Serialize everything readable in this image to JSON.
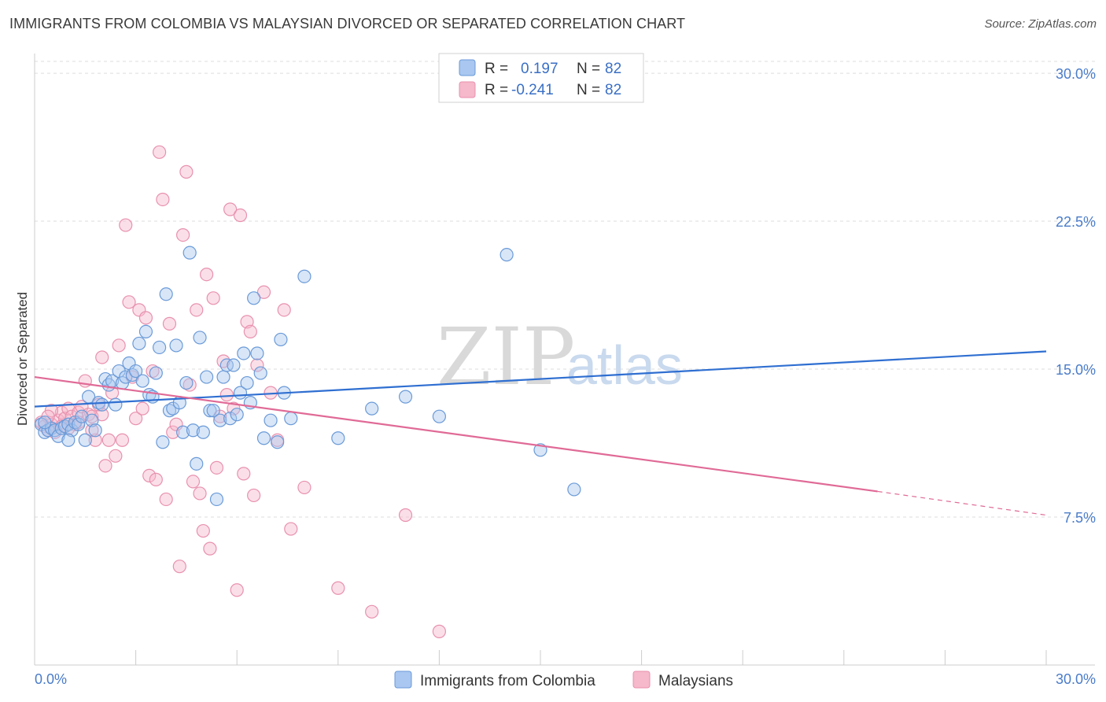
{
  "header": {
    "title": "IMMIGRANTS FROM COLOMBIA VS MALAYSIAN DIVORCED OR SEPARATED CORRELATION CHART",
    "source": "Source: ZipAtlas.com"
  },
  "watermark": {
    "zip": "ZIP",
    "atlas": "atlas"
  },
  "colors": {
    "blue_fill": "#a9c7f0",
    "blue_stroke": "#6a9ad8",
    "blue_line": "#2f6fd1",
    "pink_fill": "#f6b8cb",
    "pink_stroke": "#e891ae",
    "pink_line": "#e06a96",
    "grid": "#dddddd",
    "tick_text": "#4a7cc9"
  },
  "legend": {
    "r_label": "R =",
    "n_label": "N =",
    "series": [
      {
        "r": "0.197",
        "n": "82"
      },
      {
        "r": "-0.241",
        "n": "82"
      }
    ]
  },
  "bottom_legend": [
    "Immigrants from Colombia",
    "Malaysians"
  ],
  "chart_data": {
    "type": "scatter",
    "title": "IMMIGRANTS FROM COLOMBIA VS MALAYSIAN DIVORCED OR SEPARATED CORRELATION CHART",
    "xlabel": "",
    "ylabel": "Divorced or Separated",
    "xlim": [
      0,
      30
    ],
    "ylim": [
      0,
      31
    ],
    "x_tick_labels": [
      "0.0%",
      "30.0%"
    ],
    "y_ticks": [
      7.5,
      15.0,
      22.5,
      30.0
    ],
    "y_tick_labels": [
      "7.5%",
      "15.0%",
      "22.5%",
      "30.0%"
    ],
    "grid": true,
    "legend_position": "top-center",
    "series": [
      {
        "name": "Immigrants from Colombia",
        "r": 0.197,
        "n": 82,
        "trend": {
          "x": [
            0,
            30
          ],
          "y": [
            13.1,
            15.9
          ]
        },
        "points": [
          [
            0.2,
            12.2
          ],
          [
            0.3,
            11.8
          ],
          [
            0.4,
            11.9
          ],
          [
            0.5,
            12.0
          ],
          [
            0.6,
            11.9
          ],
          [
            0.7,
            11.6
          ],
          [
            0.8,
            12.0
          ],
          [
            0.9,
            12.1
          ],
          [
            1.0,
            12.2
          ],
          [
            1.1,
            11.9
          ],
          [
            1.2,
            12.3
          ],
          [
            1.3,
            12.2
          ],
          [
            1.4,
            12.6
          ],
          [
            1.5,
            11.4
          ],
          [
            1.6,
            13.6
          ],
          [
            1.7,
            12.4
          ],
          [
            1.8,
            11.9
          ],
          [
            1.9,
            13.3
          ],
          [
            2.0,
            13.2
          ],
          [
            2.1,
            14.5
          ],
          [
            2.2,
            14.2
          ],
          [
            2.3,
            14.4
          ],
          [
            2.4,
            13.2
          ],
          [
            2.5,
            14.9
          ],
          [
            2.6,
            14.3
          ],
          [
            2.7,
            14.6
          ],
          [
            2.8,
            15.3
          ],
          [
            2.9,
            14.7
          ],
          [
            3.0,
            14.9
          ],
          [
            3.1,
            16.3
          ],
          [
            3.2,
            14.4
          ],
          [
            3.3,
            16.9
          ],
          [
            3.4,
            13.7
          ],
          [
            3.5,
            13.6
          ],
          [
            3.6,
            14.8
          ],
          [
            3.7,
            16.1
          ],
          [
            3.8,
            11.3
          ],
          [
            3.9,
            18.8
          ],
          [
            4.0,
            12.9
          ],
          [
            4.1,
            13.0
          ],
          [
            4.2,
            16.2
          ],
          [
            4.3,
            13.3
          ],
          [
            4.4,
            11.8
          ],
          [
            4.5,
            14.3
          ],
          [
            4.6,
            20.9
          ],
          [
            4.7,
            11.9
          ],
          [
            4.8,
            10.2
          ],
          [
            4.9,
            16.6
          ],
          [
            5.0,
            11.8
          ],
          [
            5.1,
            14.6
          ],
          [
            5.2,
            12.9
          ],
          [
            5.3,
            12.9
          ],
          [
            5.4,
            8.4
          ],
          [
            5.5,
            12.4
          ],
          [
            5.6,
            14.6
          ],
          [
            5.7,
            15.2
          ],
          [
            5.8,
            12.5
          ],
          [
            5.9,
            15.2
          ],
          [
            6.0,
            12.7
          ],
          [
            6.1,
            13.8
          ],
          [
            6.2,
            15.8
          ],
          [
            6.3,
            14.3
          ],
          [
            6.4,
            13.3
          ],
          [
            6.5,
            18.6
          ],
          [
            6.6,
            15.8
          ],
          [
            6.7,
            14.8
          ],
          [
            6.8,
            11.5
          ],
          [
            7.0,
            12.4
          ],
          [
            7.2,
            11.3
          ],
          [
            7.3,
            16.5
          ],
          [
            7.4,
            13.8
          ],
          [
            7.6,
            12.5
          ],
          [
            8.0,
            19.7
          ],
          [
            9.0,
            11.5
          ],
          [
            10.0,
            13.0
          ],
          [
            11.0,
            13.6
          ],
          [
            12.0,
            12.6
          ],
          [
            14.0,
            20.8
          ],
          [
            15.0,
            10.9
          ],
          [
            16.0,
            8.9
          ],
          [
            0.3,
            12.3
          ],
          [
            1.0,
            11.4
          ]
        ]
      },
      {
        "name": "Malaysians",
        "r": -0.241,
        "n": 82,
        "trend": {
          "x": [
            0,
            25
          ],
          "y": [
            14.6,
            8.8
          ]
        },
        "trend_dashed": {
          "x": [
            25,
            30
          ],
          "y": [
            8.8,
            7.6
          ]
        },
        "points": [
          [
            0.2,
            12.3
          ],
          [
            0.3,
            12.1
          ],
          [
            0.4,
            11.9
          ],
          [
            0.5,
            12.2
          ],
          [
            0.6,
            11.8
          ],
          [
            0.7,
            12.4
          ],
          [
            0.8,
            12.8
          ],
          [
            0.9,
            12.5
          ],
          [
            1.0,
            13.0
          ],
          [
            1.1,
            12.6
          ],
          [
            1.2,
            12.2
          ],
          [
            1.3,
            12.8
          ],
          [
            1.4,
            13.1
          ],
          [
            1.5,
            14.4
          ],
          [
            1.6,
            12.7
          ],
          [
            1.7,
            12.6
          ],
          [
            1.8,
            11.4
          ],
          [
            1.9,
            13.2
          ],
          [
            2.0,
            15.6
          ],
          [
            2.1,
            10.1
          ],
          [
            2.2,
            11.4
          ],
          [
            2.3,
            13.8
          ],
          [
            2.4,
            10.6
          ],
          [
            2.5,
            16.2
          ],
          [
            2.6,
            11.4
          ],
          [
            2.7,
            22.3
          ],
          [
            2.8,
            18.4
          ],
          [
            2.9,
            14.6
          ],
          [
            3.0,
            12.5
          ],
          [
            3.1,
            18.0
          ],
          [
            3.2,
            13.0
          ],
          [
            3.3,
            17.6
          ],
          [
            3.4,
            9.6
          ],
          [
            3.5,
            14.9
          ],
          [
            3.6,
            9.4
          ],
          [
            3.7,
            26.0
          ],
          [
            3.8,
            23.6
          ],
          [
            3.9,
            8.4
          ],
          [
            4.0,
            17.3
          ],
          [
            4.1,
            11.8
          ],
          [
            4.2,
            12.2
          ],
          [
            4.3,
            5.0
          ],
          [
            4.4,
            21.8
          ],
          [
            4.5,
            25.0
          ],
          [
            4.6,
            14.2
          ],
          [
            4.7,
            9.3
          ],
          [
            4.8,
            18.0
          ],
          [
            4.9,
            8.7
          ],
          [
            5.0,
            6.8
          ],
          [
            5.1,
            19.8
          ],
          [
            5.2,
            5.9
          ],
          [
            5.3,
            18.6
          ],
          [
            5.4,
            10.0
          ],
          [
            5.5,
            12.6
          ],
          [
            5.6,
            15.4
          ],
          [
            5.7,
            13.7
          ],
          [
            5.8,
            23.1
          ],
          [
            5.9,
            13.0
          ],
          [
            6.0,
            3.8
          ],
          [
            6.1,
            22.8
          ],
          [
            6.2,
            9.7
          ],
          [
            6.3,
            17.4
          ],
          [
            6.4,
            16.9
          ],
          [
            6.5,
            8.6
          ],
          [
            6.6,
            15.2
          ],
          [
            6.8,
            18.9
          ],
          [
            7.0,
            13.8
          ],
          [
            7.2,
            11.4
          ],
          [
            7.4,
            18.0
          ],
          [
            7.6,
            6.9
          ],
          [
            8.0,
            9.0
          ],
          [
            9.0,
            3.9
          ],
          [
            10.0,
            2.7
          ],
          [
            11.0,
            7.6
          ],
          [
            12.0,
            1.7
          ],
          [
            0.5,
            12.9
          ],
          [
            1.0,
            12.0
          ],
          [
            1.3,
            12.3
          ],
          [
            1.7,
            11.9
          ],
          [
            2.0,
            12.7
          ],
          [
            0.4,
            12.6
          ],
          [
            0.8,
            12.1
          ]
        ]
      }
    ]
  }
}
